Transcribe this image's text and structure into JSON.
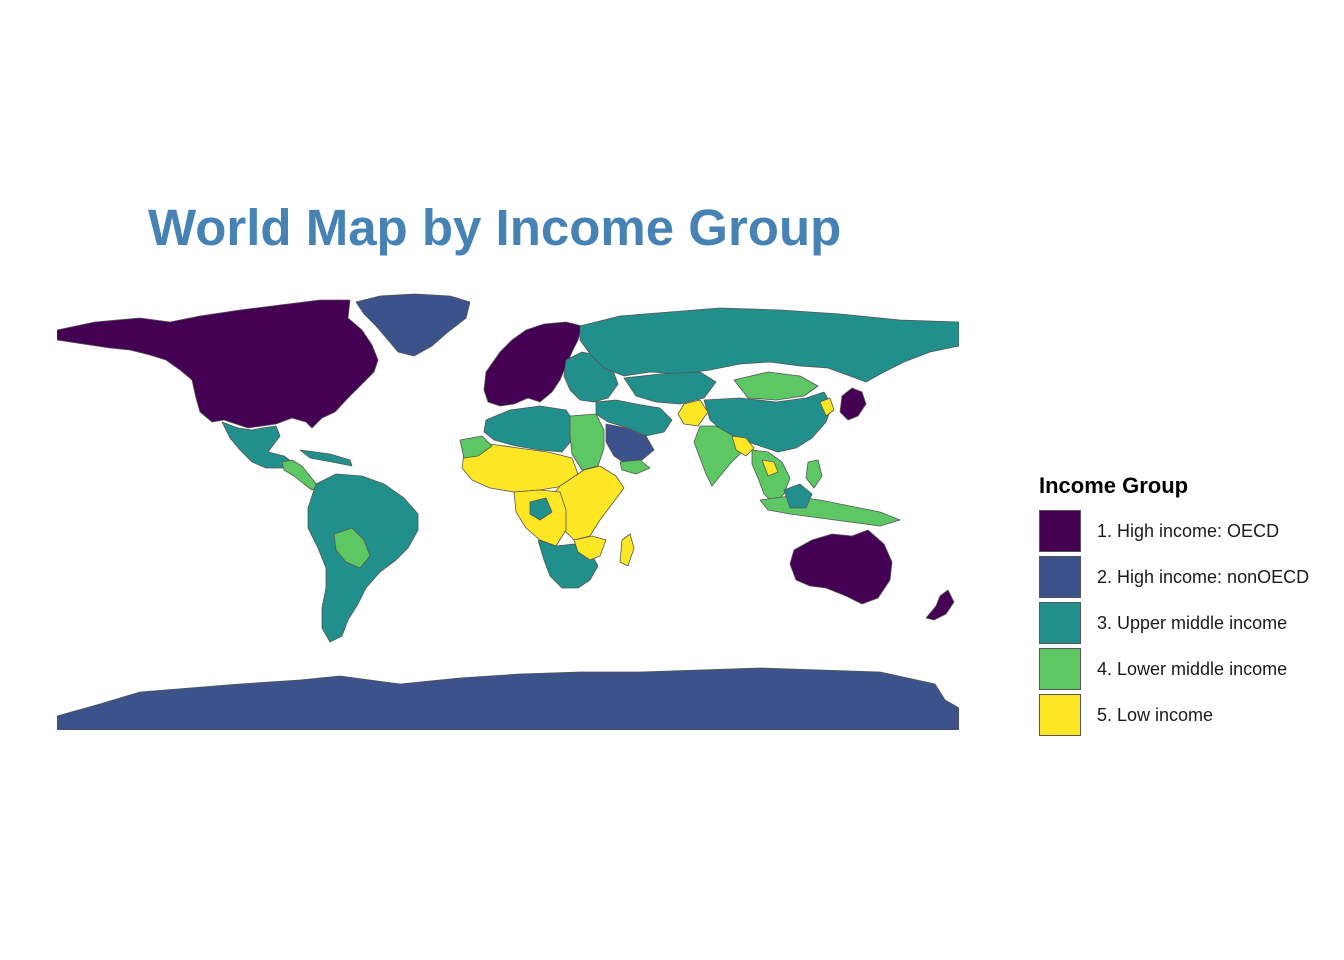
{
  "title": "World Map by Income Group",
  "legend": {
    "title": "Income Group",
    "items": [
      {
        "label": "1. High income: OECD",
        "color": "#440154"
      },
      {
        "label": "2. High income: nonOECD",
        "color": "#3b528b"
      },
      {
        "label": "3. Upper middle income",
        "color": "#21908c"
      },
      {
        "label": "4. Lower middle income",
        "color": "#5dc863"
      },
      {
        "label": "5. Low income",
        "color": "#fde725"
      }
    ]
  },
  "map": {
    "border_color": "#555555",
    "regions": [
      {
        "name": "North America (Canada/USA)",
        "group": 1
      },
      {
        "name": "Greenland",
        "group": 2
      },
      {
        "name": "Mexico",
        "group": 3
      },
      {
        "name": "Central America",
        "group": 4
      },
      {
        "name": "South America",
        "group": 3
      },
      {
        "name": "Bolivia / Paraguay",
        "group": 4
      },
      {
        "name": "Western Europe",
        "group": 1
      },
      {
        "name": "Eastern Europe",
        "group": 3
      },
      {
        "name": "Russia",
        "group": 3
      },
      {
        "name": "Mongolia",
        "group": 4
      },
      {
        "name": "China",
        "group": 3
      },
      {
        "name": "Middle East",
        "group": 3
      },
      {
        "name": "Saudi Arabia",
        "group": 2
      },
      {
        "name": "Afghanistan",
        "group": 5
      },
      {
        "name": "India",
        "group": 4
      },
      {
        "name": "Japan",
        "group": 1
      },
      {
        "name": "North Africa",
        "group": 3
      },
      {
        "name": "Egypt / Sudan",
        "group": 4
      },
      {
        "name": "Sahel",
        "group": 5
      },
      {
        "name": "Central Africa",
        "group": 5
      },
      {
        "name": "Southern Africa",
        "group": 3
      },
      {
        "name": "Madagascar",
        "group": 5
      },
      {
        "name": "Southeast Asia",
        "group": 4
      },
      {
        "name": "Indonesia",
        "group": 4
      },
      {
        "name": "Australia",
        "group": 1
      },
      {
        "name": "New Zealand",
        "group": 1
      },
      {
        "name": "Antarctica",
        "group": 2
      }
    ]
  }
}
